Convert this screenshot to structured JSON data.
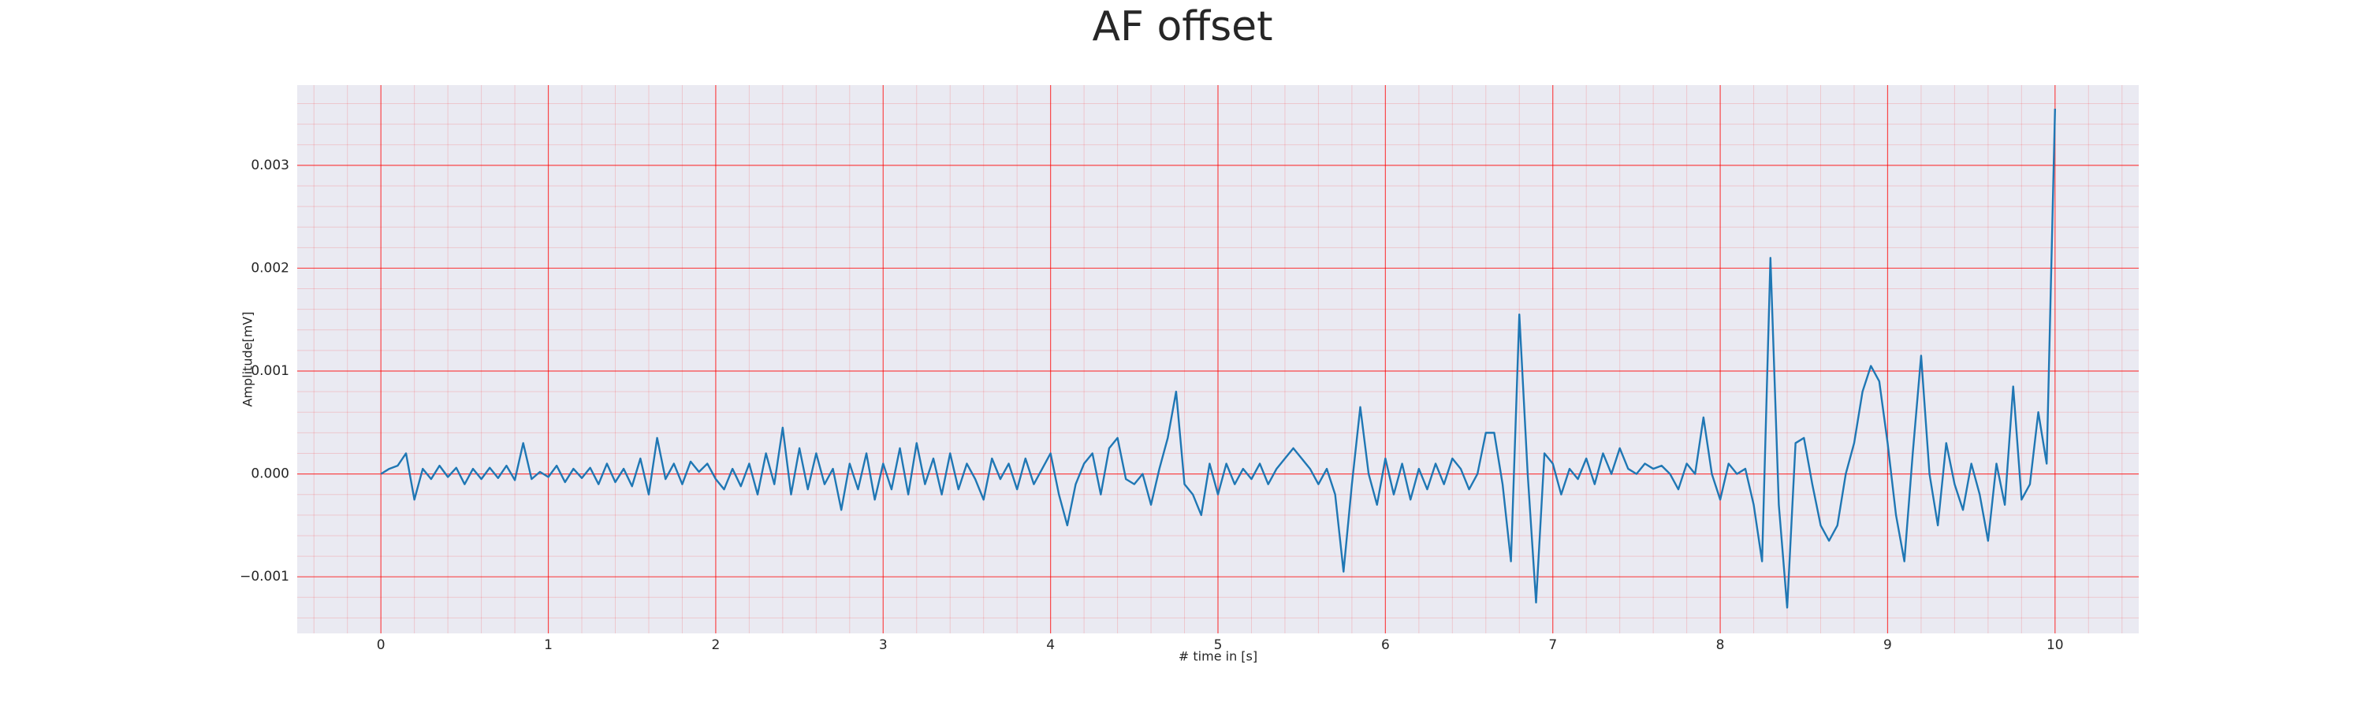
{
  "chart_data": {
    "type": "line",
    "title": "AF offset",
    "xlabel": "# time in [s]",
    "ylabel": "Amplitude[mV]",
    "color": "#1f77b4",
    "background": "#eaeaf2",
    "grid": true,
    "grid_color": "#ff0000",
    "minor_grid": true,
    "xlim": [
      -0.5,
      10.5
    ],
    "ylim": [
      -0.00155,
      0.00378
    ],
    "xticks": [
      0,
      1,
      2,
      3,
      4,
      5,
      6,
      7,
      8,
      9,
      10
    ],
    "yticks": [
      {
        "value": -0.001,
        "label": "−0.001"
      },
      {
        "value": 0,
        "label": "0.000"
      },
      {
        "value": 0.001,
        "label": "0.001"
      },
      {
        "value": 0.002,
        "label": "0.002"
      },
      {
        "value": 0.003,
        "label": "0.003"
      }
    ],
    "x": [
      0,
      0.05,
      0.1,
      0.15,
      0.2,
      0.25,
      0.3,
      0.35,
      0.4,
      0.45,
      0.5,
      0.55,
      0.6,
      0.65,
      0.7,
      0.75,
      0.8,
      0.85,
      0.9,
      0.95,
      1,
      1.05,
      1.1,
      1.15,
      1.2,
      1.25,
      1.3,
      1.35,
      1.4,
      1.45,
      1.5,
      1.55,
      1.6,
      1.65,
      1.7,
      1.75,
      1.8,
      1.85,
      1.9,
      1.95,
      2,
      2.05,
      2.1,
      2.15,
      2.2,
      2.25,
      2.3,
      2.35,
      2.4,
      2.45,
      2.5,
      2.55,
      2.6,
      2.65,
      2.7,
      2.75,
      2.8,
      2.85,
      2.9,
      2.95,
      3,
      3.05,
      3.1,
      3.15,
      3.2,
      3.25,
      3.3,
      3.35,
      3.4,
      3.45,
      3.5,
      3.55,
      3.6,
      3.65,
      3.7,
      3.75,
      3.8,
      3.85,
      3.9,
      3.95,
      4,
      4.05,
      4.1,
      4.15,
      4.2,
      4.25,
      4.3,
      4.35,
      4.4,
      4.45,
      4.5,
      4.55,
      4.6,
      4.65,
      4.7,
      4.75,
      4.8,
      4.85,
      4.9,
      4.95,
      5,
      5.05,
      5.1,
      5.15,
      5.2,
      5.25,
      5.3,
      5.35,
      5.4,
      5.45,
      5.5,
      5.55,
      5.6,
      5.65,
      5.7,
      5.75,
      5.8,
      5.85,
      5.9,
      5.95,
      6,
      6.05,
      6.1,
      6.15,
      6.2,
      6.25,
      6.3,
      6.35,
      6.4,
      6.45,
      6.5,
      6.55,
      6.6,
      6.65,
      6.7,
      6.75,
      6.8,
      6.85,
      6.9,
      6.95,
      7,
      7.05,
      7.1,
      7.15,
      7.2,
      7.25,
      7.3,
      7.35,
      7.4,
      7.45,
      7.5,
      7.55,
      7.6,
      7.65,
      7.7,
      7.75,
      7.8,
      7.85,
      7.9,
      7.95,
      8,
      8.05,
      8.1,
      8.15,
      8.2,
      8.25,
      8.3,
      8.35,
      8.4,
      8.45,
      8.5,
      8.55,
      8.6,
      8.65,
      8.7,
      8.75,
      8.8,
      8.85,
      8.9,
      8.95,
      9,
      9.05,
      9.1,
      9.15,
      9.2,
      9.25,
      9.3,
      9.35,
      9.4,
      9.45,
      9.5,
      9.55,
      9.6,
      9.65,
      9.7,
      9.75,
      9.8,
      9.85,
      9.9,
      9.95,
      10
    ],
    "values": [
      0,
      5e-05,
      8e-05,
      0.0002,
      -0.00025,
      5e-05,
      -5e-05,
      8e-05,
      -3e-05,
      6e-05,
      -0.0001,
      5e-05,
      -5e-05,
      6e-05,
      -4e-05,
      8e-05,
      -6e-05,
      0.0003,
      -5e-05,
      2e-05,
      -3e-05,
      8e-05,
      -8e-05,
      5e-05,
      -4e-05,
      6e-05,
      -0.0001,
      0.0001,
      -8e-05,
      5e-05,
      -0.00012,
      0.00015,
      -0.0002,
      0.00035,
      -5e-05,
      0.0001,
      -0.0001,
      0.00012,
      2e-05,
      0.0001,
      -5e-05,
      -0.00015,
      5e-05,
      -0.00012,
      0.0001,
      -0.0002,
      0.0002,
      -0.0001,
      0.00045,
      -0.0002,
      0.00025,
      -0.00015,
      0.0002,
      -0.0001,
      5e-05,
      -0.00035,
      0.0001,
      -0.00015,
      0.0002,
      -0.00025,
      0.0001,
      -0.00015,
      0.00025,
      -0.0002,
      0.0003,
      -0.0001,
      0.00015,
      -0.0002,
      0.0002,
      -0.00015,
      0.0001,
      -5e-05,
      -0.00025,
      0.00015,
      -5e-05,
      0.0001,
      -0.00015,
      0.00015,
      -0.0001,
      5e-05,
      0.0002,
      -0.0002,
      -0.0005,
      -0.0001,
      0.0001,
      0.0002,
      -0.0002,
      0.00025,
      0.00035,
      -5e-05,
      -0.0001,
      0,
      -0.0003,
      5e-05,
      0.00035,
      0.0008,
      -0.0001,
      -0.0002,
      -0.0004,
      0.0001,
      -0.0002,
      0.0001,
      -0.0001,
      5e-05,
      -5e-05,
      0.0001,
      -0.0001,
      5e-05,
      0.00015,
      0.00025,
      0.00015,
      5e-05,
      -0.0001,
      5e-05,
      -0.0002,
      -0.00095,
      -0.0001,
      0.00065,
      0,
      -0.0003,
      0.00015,
      -0.0002,
      0.0001,
      -0.00025,
      5e-05,
      -0.00015,
      0.0001,
      -0.0001,
      0.00015,
      5e-05,
      -0.00015,
      0,
      0.0004,
      0.0004,
      -0.0001,
      -0.00085,
      0.00155,
      0,
      -0.00125,
      0.0002,
      0.0001,
      -0.0002,
      5e-05,
      -5e-05,
      0.00015,
      -0.0001,
      0.0002,
      0,
      0.00025,
      5e-05,
      0,
      0.0001,
      5e-05,
      8e-05,
      0,
      -0.00015,
      0.0001,
      0,
      0.00055,
      0,
      -0.00025,
      0.0001,
      0,
      5e-05,
      -0.0003,
      -0.00085,
      0.0021,
      -0.0003,
      -0.0013,
      0.0003,
      0.00035,
      -0.0001,
      -0.0005,
      -0.00065,
      -0.0005,
      0,
      0.0003,
      0.0008,
      0.00105,
      0.0009,
      0.0003,
      -0.0004,
      -0.00085,
      0.0002,
      0.00115,
      0,
      -0.0005,
      0.0003,
      -0.0001,
      -0.00035,
      0.0001,
      -0.0002,
      -0.00065,
      0.0001,
      -0.0003,
      0.00085,
      -0.00025,
      -0.0001,
      0.0006,
      0.0001,
      0.00355
    ]
  }
}
